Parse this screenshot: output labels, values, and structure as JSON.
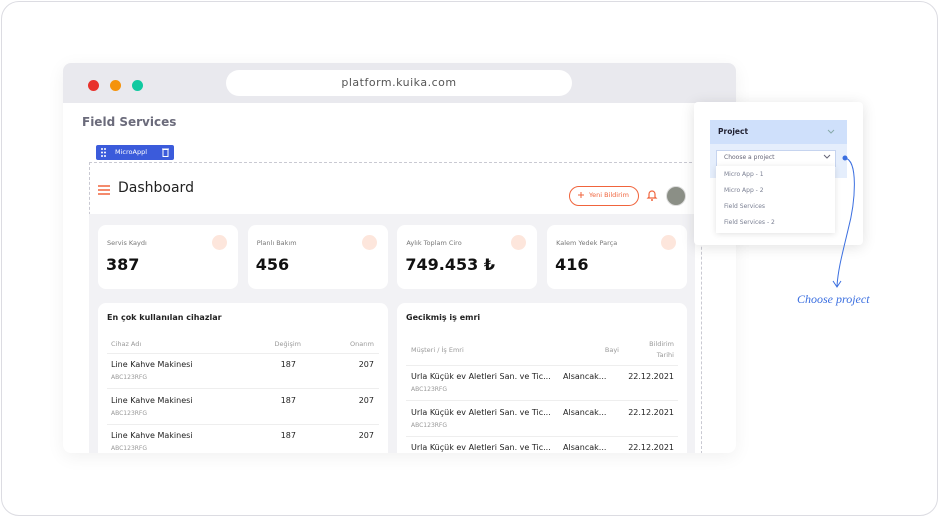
{
  "browser": {
    "url": "platform.kuika.com"
  },
  "page": {
    "title": "Field Services",
    "chip": "MicroAppl"
  },
  "dashboard": {
    "title": "Dashboard",
    "button": "Yeni Bildirim",
    "cards": [
      {
        "label": "Servis Kaydı",
        "value": "387"
      },
      {
        "label": "Planlı Bakım",
        "value": "456"
      },
      {
        "label": "Aylık Toplam Ciro",
        "value": "749.453 ₺"
      },
      {
        "label": "Kalem Yedek Parça",
        "value": "416"
      }
    ],
    "devices": {
      "title": "En çok kullanılan cihazlar",
      "headers": [
        "Cihaz Adı",
        "Değişim",
        "Onarım"
      ],
      "rows": [
        {
          "name": "Line Kahve Makinesi",
          "code": "ABC123RFG",
          "change": "187",
          "repair": "207"
        },
        {
          "name": "Line Kahve Makinesi",
          "code": "ABC123RFG",
          "change": "187",
          "repair": "207"
        },
        {
          "name": "Line Kahve Makinesi",
          "code": "ABC123RFG",
          "change": "187",
          "repair": "207"
        }
      ]
    },
    "orders": {
      "title": "Gecikmiş iş emri",
      "headers": [
        "Müşteri / İş Emri",
        "Bayi",
        "Bildirim",
        "Tarihi"
      ],
      "rows": [
        {
          "name": "Urla Küçük ev Aletleri San. ve Tic...",
          "code": "ABC123RFG",
          "dealer": "Alsancak...",
          "date": "22.12.2021"
        },
        {
          "name": "Urla Küçük ev Aletleri San. ve Tic...",
          "code": "ABC123RFG",
          "dealer": "Alsancak...",
          "date": "22.12.2021"
        },
        {
          "name": "Urla Küçük ev Aletleri San. ve Tic...",
          "dealer": "Alsancak...",
          "date": "22.12.2021"
        }
      ]
    }
  },
  "dropdown": {
    "title": "Project",
    "placeholder": "Choose a project",
    "options": [
      "Micro App - 1",
      "Micro App - 2",
      "Field Services",
      "Field Services - 2"
    ]
  },
  "annotation": "Choose project"
}
